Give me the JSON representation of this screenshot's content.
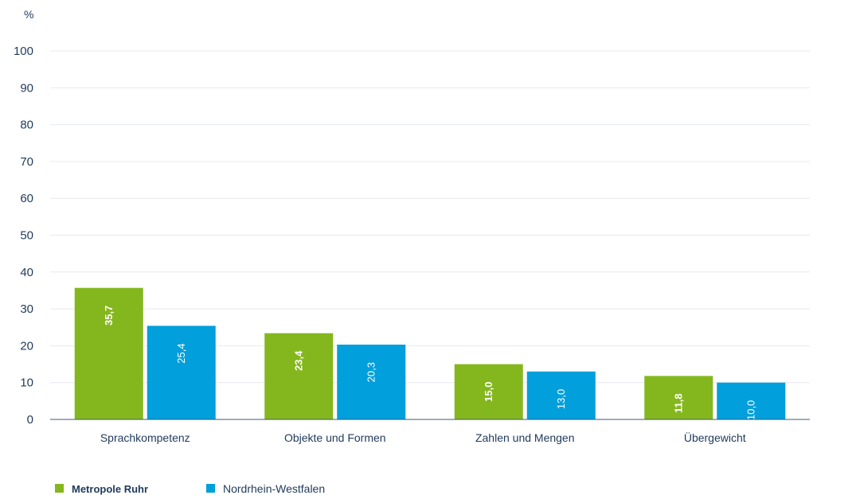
{
  "chart_data": {
    "type": "bar",
    "ylabel": "%",
    "ylim": [
      0,
      100
    ],
    "yticks": [
      0,
      10,
      20,
      30,
      40,
      50,
      60,
      70,
      80,
      90,
      100
    ],
    "grid": true,
    "legend_position": "bottom-left",
    "categories": [
      "Sprachkompetenz",
      "Objekte und Formen",
      "Zahlen und Mengen",
      "Übergewicht"
    ],
    "series": [
      {
        "name": "Metropole Ruhr",
        "color": "#84b71d",
        "values": [
          35.7,
          23.4,
          15.0,
          11.8
        ],
        "labels": [
          "35,7",
          "23,4",
          "15,0",
          "11,8"
        ]
      },
      {
        "name": "Nordrhein-Westfalen",
        "color": "#019fdb",
        "values": [
          25.4,
          20.3,
          13.0,
          10.0
        ],
        "labels": [
          "25,4",
          "20,3",
          "13,0",
          "10,0"
        ]
      }
    ]
  }
}
